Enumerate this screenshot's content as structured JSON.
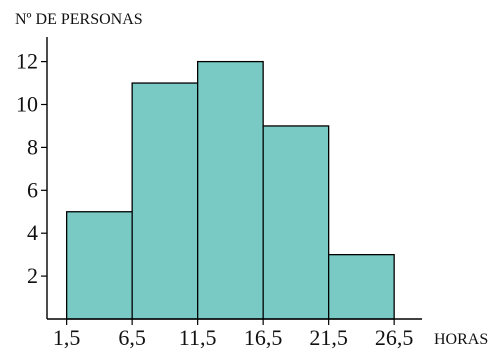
{
  "chart_data": {
    "type": "bar",
    "variant": "histogram",
    "ylabel": "Nº DE PERSONAS",
    "xlabel": "HORAS",
    "bin_edges": [
      1.5,
      6.5,
      11.5,
      16.5,
      21.5,
      26.5
    ],
    "bin_edge_labels": [
      "1,5",
      "6,5",
      "11,5",
      "16,5",
      "21,5",
      "26,5"
    ],
    "values": [
      5,
      11,
      12,
      9,
      3
    ],
    "yticks": [
      2,
      4,
      6,
      8,
      10,
      12
    ],
    "ylim": [
      0,
      13
    ],
    "xlim": [
      0,
      31
    ],
    "grid": false,
    "colors": {
      "bar": "#79cac5",
      "stroke": "#000000"
    }
  }
}
